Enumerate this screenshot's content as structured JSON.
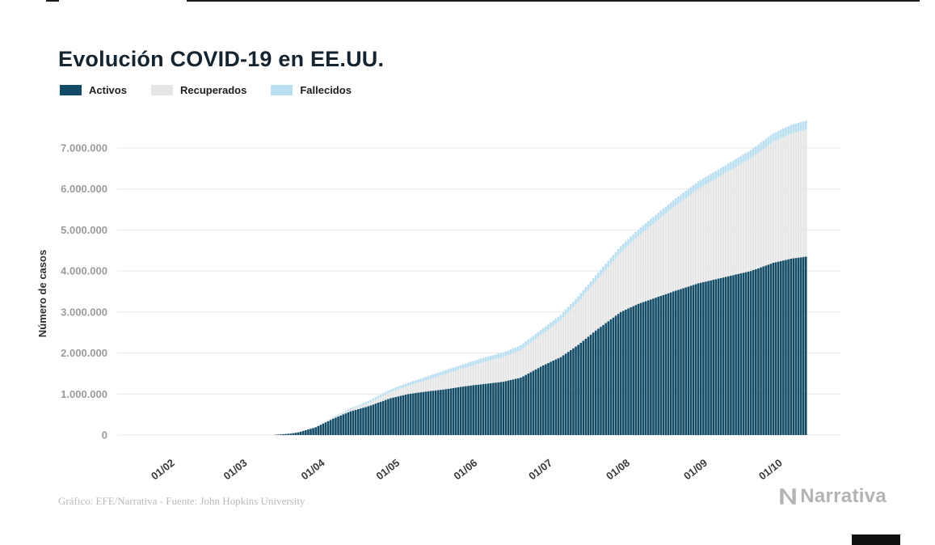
{
  "title": "Evolución COVID-19 en EE.UU.",
  "legend": [
    {
      "label": "Activos",
      "color": "#114b66"
    },
    {
      "label": "Recuperados",
      "color": "#e6e6e6"
    },
    {
      "label": "Fallecidos",
      "color": "#b9dff0"
    }
  ],
  "footer": {
    "source_note": "Gráfico: EFE/Narrativa - Fuente: John Hopkins University",
    "brand": "Narrativa"
  },
  "chart_data": {
    "type": "area",
    "stacked": true,
    "title": "Evolución COVID-19 en EE.UU.",
    "xlabel": "",
    "ylabel": "Número de casos",
    "ylim": [
      0,
      7700000
    ],
    "grid": "horizontal",
    "legend_position": "top-left",
    "yticks": [
      0,
      1000000,
      2000000,
      3000000,
      4000000,
      5000000,
      6000000,
      7000000
    ],
    "xticks": [
      "01/02",
      "01/03",
      "01/04",
      "01/05",
      "01/06",
      "01/07",
      "01/08",
      "01/09",
      "01/10"
    ],
    "x": [
      "01/02",
      "15/02",
      "01/03",
      "08/03",
      "15/03",
      "22/03",
      "25/03",
      "01/04",
      "08/04",
      "15/04",
      "22/04",
      "01/05",
      "08/05",
      "15/05",
      "22/05",
      "01/06",
      "08/06",
      "15/06",
      "22/06",
      "01/07",
      "08/07",
      "15/07",
      "22/07",
      "01/08",
      "08/08",
      "15/08",
      "22/08",
      "01/09",
      "08/09",
      "15/09",
      "22/09",
      "01/10",
      "08/10",
      "14/10"
    ],
    "series": [
      {
        "name": "Activos",
        "color": "#114b66",
        "values": [
          0,
          0,
          100,
          500,
          3500,
          35000,
          65000,
          190000,
          400000,
          580000,
          700000,
          900000,
          1000000,
          1060000,
          1110000,
          1200000,
          1250000,
          1300000,
          1400000,
          1700000,
          1900000,
          2200000,
          2550000,
          3000000,
          3200000,
          3350000,
          3500000,
          3700000,
          3800000,
          3900000,
          4000000,
          4200000,
          4300000,
          4350000
        ]
      },
      {
        "name": "Recuperados",
        "color": "#e6e6e6",
        "values": [
          0,
          0,
          0,
          0,
          100,
          1500,
          3000,
          8000,
          25000,
          50000,
          80000,
          150000,
          200000,
          270000,
          360000,
          460000,
          540000,
          600000,
          670000,
          780000,
          900000,
          1050000,
          1200000,
          1450000,
          1650000,
          1850000,
          2050000,
          2300000,
          2450000,
          2600000,
          2750000,
          2950000,
          3050000,
          3100000
        ]
      },
      {
        "name": "Fallecidos",
        "color": "#b9dff0",
        "values": [
          0,
          0,
          0,
          20,
          60,
          500,
          1000,
          4000,
          13000,
          28000,
          45000,
          63000,
          76000,
          86000,
          95000,
          105000,
          111000,
          116000,
          120000,
          128000,
          132000,
          137000,
          143000,
          155000,
          162000,
          169000,
          176000,
          186000,
          190000,
          195000,
          200000,
          208000,
          212000,
          216000
        ]
      }
    ]
  }
}
